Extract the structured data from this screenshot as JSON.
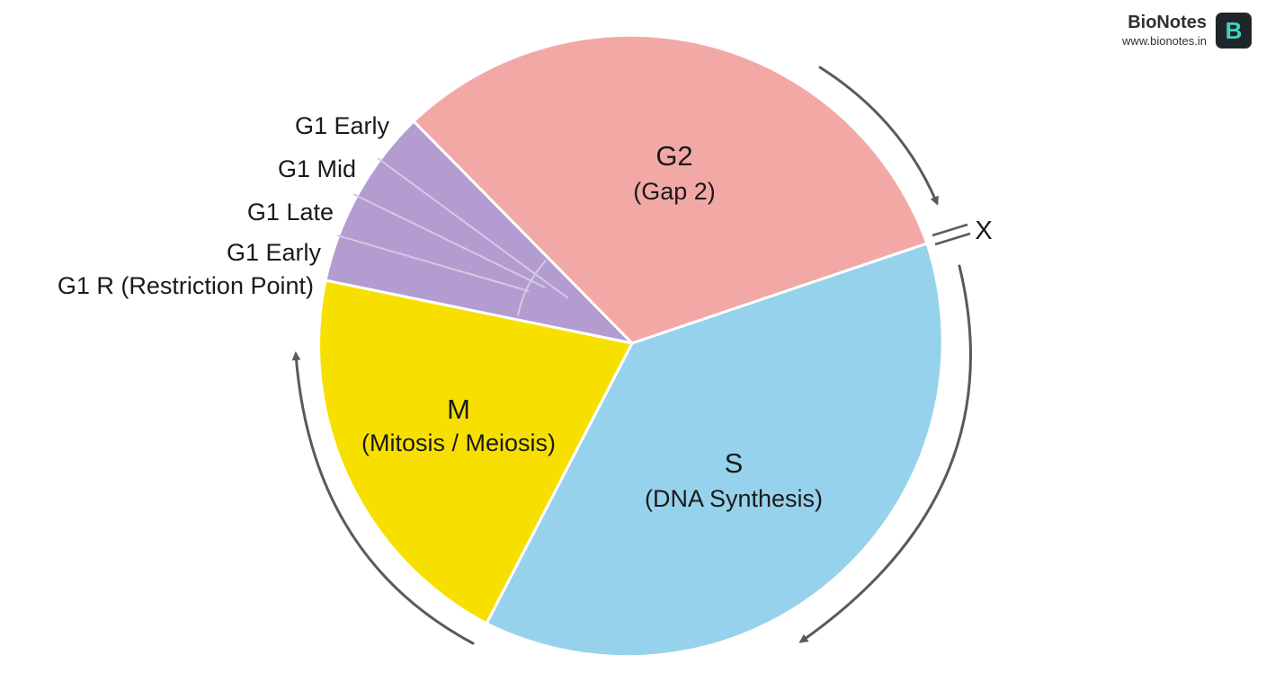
{
  "brand": {
    "name": "BioNotes",
    "url": "www.bionotes.in",
    "logo_letter": "B",
    "logo_bg": "#1f262b",
    "logo_fg": "#3fd3c0"
  },
  "phases": [
    {
      "key": "g2",
      "title": "G2",
      "subtitle": "(Gap 2)",
      "color": "#f2a9a6"
    },
    {
      "key": "s",
      "title": "S",
      "subtitle": "(DNA Synthesis)",
      "color": "#97d2ec"
    },
    {
      "key": "m",
      "title": "M",
      "subtitle": "(Mitosis / Meiosis)",
      "color": "#f7e000"
    },
    {
      "key": "g1",
      "color": "#b39dd0"
    }
  ],
  "g1_labels": [
    "G1 Early",
    "G1 Mid",
    "G1 Late",
    "G1 Early",
    "G1 R (Restriction Point)"
  ],
  "checkpoint_label": "X",
  "colors": {
    "arrow": "#5a5a5a",
    "divider": "#ffffff",
    "text": "#1a1a1a"
  },
  "arrows": [
    "clockwise-arrow-g2-to-s",
    "clockwise-arrow-s-bottom",
    "clockwise-arrow-m-to-g1"
  ]
}
